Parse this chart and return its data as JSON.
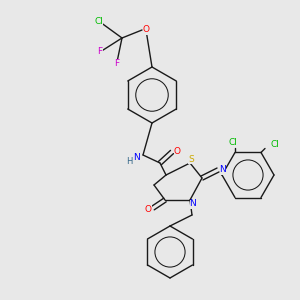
{
  "bg_color": "#e8e8e8",
  "bond_color": "#1a1a1a",
  "atoms": {
    "S": {
      "color": "#ccaa00"
    },
    "N": {
      "color": "#0000FF"
    },
    "O": {
      "color": "#FF0000"
    },
    "Cl": {
      "color": "#00BB00"
    },
    "F": {
      "color": "#CC00CC"
    },
    "H": {
      "color": "#336688"
    }
  },
  "lw": 1.0
}
